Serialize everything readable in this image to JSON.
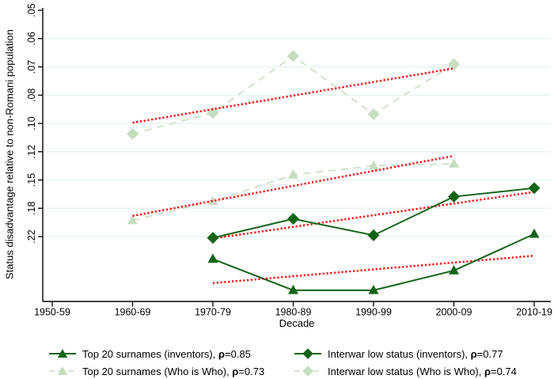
{
  "colors": {
    "dark_green": "#146418",
    "light_green": "#c6ddc0",
    "trend_red": "#fe0000",
    "gridline": "#e6f1f0",
    "axis": "#000000",
    "background": "#ffffff"
  },
  "chart_data": {
    "type": "line",
    "title": "",
    "xlabel": "Decade",
    "ylabel": "Status disadvantage relative to non-Romani population",
    "grid": true,
    "y_axis_inverted_downward": true,
    "y_tick_labels": [
      ".05",
      ".06",
      ".07",
      ".08",
      ".10",
      ".12",
      ".15",
      ".18",
      ".22"
    ],
    "y_tick_values": [
      0.05,
      0.06,
      0.07,
      0.08,
      0.1,
      0.12,
      0.15,
      0.18,
      0.22
    ],
    "categories": [
      "1950-59",
      "1960-69",
      "1970-79",
      "1980-89",
      "1990-99",
      "2000-09",
      "2010-19"
    ],
    "series": [
      {
        "name": "Top 20 surnames (Who is Who)",
        "rho": 0.73,
        "tone": "light",
        "marker": "triangle",
        "line": "dashed",
        "points": [
          {
            "x": "1960-69",
            "y": 0.196
          },
          {
            "x": "1970-79",
            "y": 0.172
          },
          {
            "x": "1980-89",
            "y": 0.144
          },
          {
            "x": "1990-99",
            "y": 0.134
          },
          {
            "x": "2000-09",
            "y": 0.132
          }
        ]
      },
      {
        "name": "Interwar low status (Who is Who)",
        "rho": 0.74,
        "tone": "light",
        "marker": "diamond",
        "line": "dashed",
        "points": [
          {
            "x": "1960-69",
            "y": 0.107
          },
          {
            "x": "1970-79",
            "y": 0.092
          },
          {
            "x": "1980-89",
            "y": 0.066
          },
          {
            "x": "1990-99",
            "y": 0.093
          },
          {
            "x": "2000-09",
            "y": 0.069
          }
        ]
      },
      {
        "name": "Top 20 surnames (inventors)",
        "rho": 0.85,
        "tone": "dark",
        "marker": "triangle",
        "line": "solid",
        "points": [
          {
            "x": "1970-79",
            "y": 0.258
          },
          {
            "x": "1980-89",
            "y": 0.322
          },
          {
            "x": "1990-99",
            "y": 0.322
          },
          {
            "x": "2000-09",
            "y": 0.28
          },
          {
            "x": "2010-19",
            "y": 0.216
          }
        ]
      },
      {
        "name": "Interwar low status (inventors)",
        "rho": 0.77,
        "tone": "dark",
        "marker": "diamond",
        "line": "solid",
        "points": [
          {
            "x": "1970-79",
            "y": 0.222
          },
          {
            "x": "1980-89",
            "y": 0.194
          },
          {
            "x": "1990-99",
            "y": 0.218
          },
          {
            "x": "2000-09",
            "y": 0.167
          },
          {
            "x": "2010-19",
            "y": 0.158
          }
        ]
      }
    ],
    "trend_lines": [
      {
        "series": "Interwar low status (Who is Who)",
        "x1": "1960-69",
        "y1": 0.0995,
        "x2": "2000-09",
        "y2": 0.0705
      },
      {
        "series": "Top 20 surnames (Who is Who)",
        "x1": "1960-69",
        "y1": 0.19,
        "x2": "2000-09",
        "y2": 0.124
      },
      {
        "series": "Interwar low status (inventors)",
        "x1": "1970-79",
        "y1": 0.223,
        "x2": "2010-19",
        "y2": 0.162
      },
      {
        "series": "Top 20 surnames (inventors)",
        "x1": "1970-79",
        "y1": 0.306,
        "x2": "2010-19",
        "y2": 0.252
      }
    ],
    "legend_position": "bottom"
  },
  "legend": {
    "entries": [
      {
        "id": "top20-inventors",
        "marker": "triangle",
        "tone": "dark",
        "line": "solid",
        "text": "Top 20 surnames (inventors), ",
        "rho_symbol": "ρ",
        "rho_value": "=0.85",
        "col": 0,
        "row": 0
      },
      {
        "id": "top20-whoiswho",
        "marker": "triangle",
        "tone": "light",
        "line": "dashed",
        "text": "Top 20 surnames (Who is Who), ",
        "rho_symbol": "ρ",
        "rho_value": "=0.73",
        "col": 0,
        "row": 1
      },
      {
        "id": "interwar-inventors",
        "marker": "diamond",
        "tone": "dark",
        "line": "solid",
        "text": "Interwar low status (inventors), ",
        "rho_symbol": "ρ",
        "rho_value": "=0.77",
        "col": 1,
        "row": 0
      },
      {
        "id": "interwar-whoiswho",
        "marker": "diamond",
        "tone": "light",
        "line": "dashed",
        "text": "Interwar low status (Who is Who), ",
        "rho_symbol": "ρ",
        "rho_value": "=0.74",
        "col": 1,
        "row": 1
      }
    ]
  }
}
